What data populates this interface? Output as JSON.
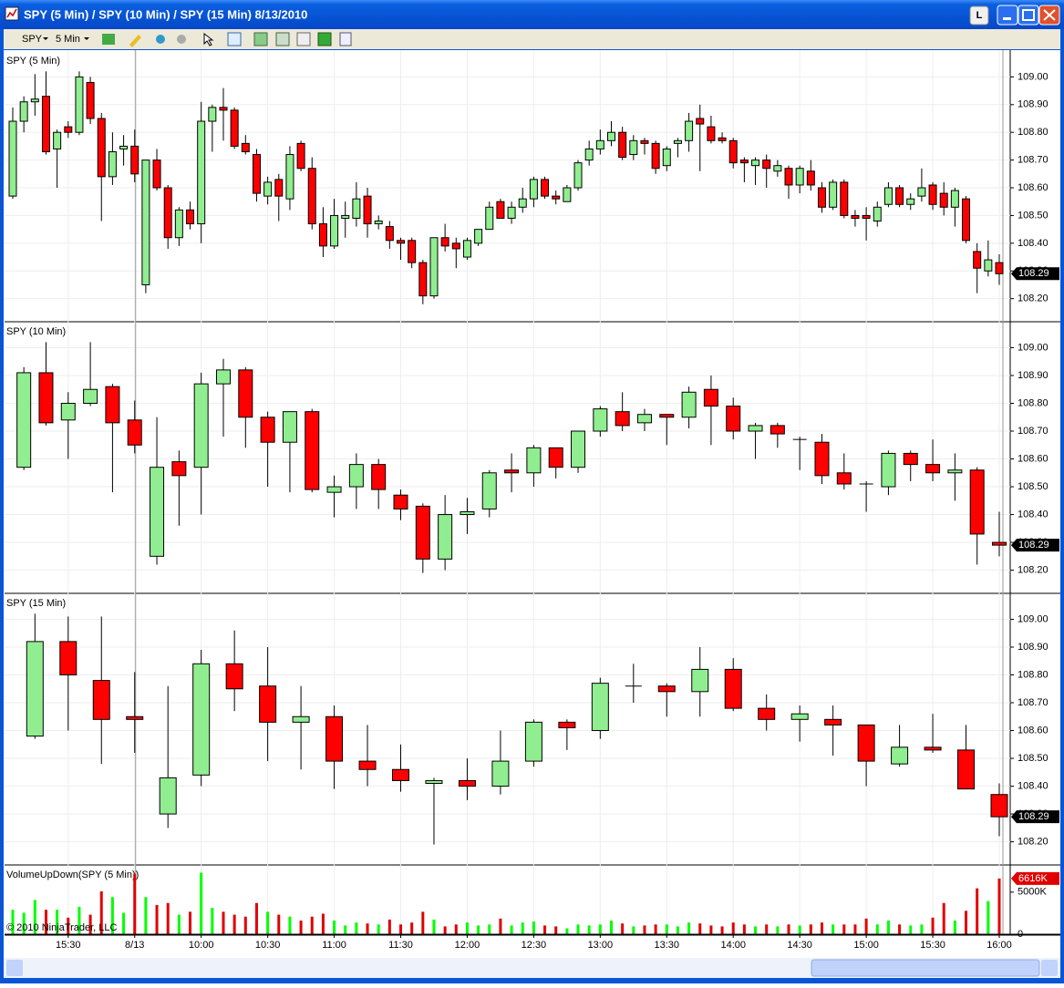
{
  "window": {
    "title": "SPY (5 Min) / SPY (10 Min) / SPY (15 Min)  8/13/2010",
    "toolbar": {
      "instrument": "SPY",
      "interval": "5 Min",
      "link_button": "L"
    }
  },
  "chart_data": [
    {
      "type": "candlestick",
      "title": "SPY (5 Min)",
      "up_color": "#90ee90",
      "down_color": "#ff0000",
      "grid": true,
      "ylim": [
        108.12,
        109.09
      ],
      "yticks": [
        {
          "value": 108.2,
          "label": "108.20"
        },
        {
          "value": 108.3,
          "label": "108.30"
        },
        {
          "value": 108.4,
          "label": "108.40"
        },
        {
          "value": 108.5,
          "label": "108.50"
        },
        {
          "value": 108.6,
          "label": "108.60"
        },
        {
          "value": 108.7,
          "label": "108.70"
        },
        {
          "value": 108.8,
          "label": "108.80"
        },
        {
          "value": 108.9,
          "label": "108.90"
        },
        {
          "value": 109,
          "label": "109.00"
        }
      ],
      "open": [
        108.57,
        108.84,
        108.91,
        108.93,
        108.74,
        108.82,
        108.8,
        108.98,
        108.85,
        108.64,
        108.74,
        108.75,
        108.25,
        108.7,
        108.6,
        108.42,
        108.52,
        108.47,
        108.84,
        108.89,
        108.88,
        108.76,
        108.72,
        108.57,
        108.63,
        108.56,
        108.76,
        108.67,
        108.47,
        108.39,
        108.49,
        108.49,
        108.57,
        108.47,
        108.46,
        108.41,
        108.41,
        108.33,
        108.21,
        108.42,
        108.4,
        108.35,
        108.4,
        108.45,
        108.55,
        108.49,
        108.53,
        108.56,
        108.63,
        108.57,
        108.55,
        108.6,
        108.7,
        108.74,
        108.77,
        108.8,
        108.72,
        108.77,
        108.76,
        108.68,
        108.76,
        108.77,
        108.85,
        108.82,
        108.78,
        108.77,
        108.7,
        108.68,
        108.7,
        108.66,
        108.67,
        108.61,
        108.66,
        108.6,
        108.53,
        108.62,
        108.5,
        108.5,
        108.48,
        108.54,
        108.6,
        108.54,
        108.57,
        108.61,
        108.58,
        108.53,
        108.56,
        108.37,
        108.3,
        108.33
      ],
      "high": [
        108.89,
        108.93,
        109.01,
        109.02,
        108.81,
        108.84,
        109.02,
        109.0,
        108.87,
        108.8,
        108.79,
        108.81,
        108.7,
        108.74,
        108.61,
        108.53,
        108.55,
        108.91,
        108.9,
        108.96,
        108.89,
        108.79,
        108.74,
        108.64,
        108.65,
        108.75,
        108.77,
        108.71,
        108.53,
        108.56,
        108.55,
        108.62,
        108.6,
        108.5,
        108.48,
        108.42,
        108.42,
        108.34,
        108.42,
        108.47,
        108.42,
        108.42,
        108.45,
        108.55,
        108.56,
        108.55,
        108.6,
        108.64,
        108.64,
        108.59,
        108.61,
        108.7,
        108.77,
        108.81,
        108.84,
        108.82,
        108.79,
        108.78,
        108.77,
        108.75,
        108.78,
        108.87,
        108.9,
        108.86,
        108.8,
        108.78,
        108.71,
        108.71,
        108.72,
        108.7,
        108.68,
        108.68,
        108.7,
        108.62,
        108.63,
        108.63,
        108.52,
        108.53,
        108.55,
        108.62,
        108.61,
        108.58,
        108.67,
        108.62,
        108.62,
        108.6,
        108.57,
        108.4,
        108.41,
        108.36
      ],
      "low": [
        108.56,
        108.8,
        108.86,
        108.72,
        108.6,
        108.78,
        108.79,
        108.83,
        108.48,
        108.61,
        108.68,
        108.62,
        108.22,
        108.59,
        108.38,
        108.39,
        108.45,
        108.4,
        108.73,
        108.77,
        108.74,
        108.72,
        108.55,
        108.54,
        108.48,
        108.52,
        108.66,
        108.45,
        108.35,
        108.38,
        108.42,
        108.46,
        108.42,
        108.45,
        108.38,
        108.34,
        108.31,
        108.18,
        108.2,
        108.37,
        108.31,
        108.34,
        108.39,
        108.45,
        108.49,
        108.47,
        108.51,
        108.53,
        108.56,
        108.54,
        108.55,
        108.59,
        108.68,
        108.72,
        108.75,
        108.7,
        108.7,
        108.72,
        108.65,
        108.66,
        108.71,
        108.73,
        108.66,
        108.76,
        108.76,
        108.67,
        108.62,
        108.61,
        108.6,
        108.64,
        108.56,
        108.58,
        108.59,
        108.51,
        108.52,
        108.49,
        108.46,
        108.41,
        108.46,
        108.53,
        108.53,
        108.52,
        108.55,
        108.52,
        108.5,
        108.46,
        108.4,
        108.22,
        108.28,
        108.25
      ],
      "close": [
        108.84,
        108.91,
        108.92,
        108.73,
        108.8,
        108.8,
        109.0,
        108.85,
        108.64,
        108.73,
        108.75,
        108.65,
        108.7,
        108.6,
        108.42,
        108.52,
        108.47,
        108.84,
        108.89,
        108.88,
        108.75,
        108.73,
        108.58,
        108.62,
        108.57,
        108.72,
        108.67,
        108.47,
        108.39,
        108.5,
        108.5,
        108.56,
        108.47,
        108.48,
        108.41,
        108.4,
        108.33,
        108.21,
        108.42,
        108.39,
        108.38,
        108.41,
        108.45,
        108.53,
        108.49,
        108.53,
        108.56,
        108.63,
        108.57,
        108.56,
        108.6,
        108.69,
        108.74,
        108.77,
        108.8,
        108.71,
        108.77,
        108.76,
        108.67,
        108.74,
        108.77,
        108.84,
        108.83,
        108.77,
        108.77,
        108.69,
        108.69,
        108.7,
        108.67,
        108.68,
        108.61,
        108.67,
        108.61,
        108.53,
        108.62,
        108.5,
        108.49,
        108.49,
        108.53,
        108.6,
        108.54,
        108.56,
        108.6,
        108.54,
        108.53,
        108.59,
        108.41,
        108.31,
        108.34,
        108.29
      ]
    },
    {
      "type": "candlestick",
      "title": "SPY (10 Min)",
      "up_color": "#90ee90",
      "down_color": "#ff0000",
      "grid": true,
      "ylim": [
        108.12,
        109.09
      ],
      "yticks": [
        {
          "value": 108.2,
          "label": "108.20"
        },
        {
          "value": 108.3,
          "label": "108.30"
        },
        {
          "value": 108.4,
          "label": "108.40"
        },
        {
          "value": 108.5,
          "label": "108.50"
        },
        {
          "value": 108.6,
          "label": "108.60"
        },
        {
          "value": 108.7,
          "label": "108.70"
        },
        {
          "value": 108.8,
          "label": "108.80"
        },
        {
          "value": 108.9,
          "label": "108.90"
        },
        {
          "value": 109,
          "label": "109.00"
        }
      ],
      "open": [
        108.57,
        108.91,
        108.74,
        108.8,
        108.86,
        108.74,
        108.25,
        108.59,
        108.57,
        108.87,
        108.92,
        108.75,
        108.66,
        108.77,
        108.48,
        108.5,
        108.58,
        108.47,
        108.43,
        108.24,
        108.4,
        108.42,
        108.56,
        108.55,
        108.64,
        108.57,
        108.7,
        108.77,
        108.73,
        108.76,
        108.75,
        108.85,
        108.79,
        108.7,
        108.72,
        108.67,
        108.66,
        108.55,
        108.51,
        108.5,
        108.62,
        108.58,
        108.55,
        108.56,
        108.3
      ],
      "high": [
        108.93,
        109.02,
        108.84,
        109.02,
        108.87,
        108.81,
        108.75,
        108.63,
        108.91,
        108.96,
        108.93,
        108.77,
        108.77,
        108.78,
        108.54,
        108.62,
        108.6,
        108.49,
        108.44,
        108.47,
        108.46,
        108.56,
        108.62,
        108.65,
        108.64,
        108.7,
        108.79,
        108.84,
        108.78,
        108.76,
        108.86,
        108.9,
        108.82,
        108.73,
        108.73,
        108.68,
        108.69,
        108.62,
        108.52,
        108.63,
        108.63,
        108.67,
        108.62,
        108.57,
        108.41
      ],
      "low": [
        108.56,
        108.72,
        108.6,
        108.79,
        108.48,
        108.62,
        108.22,
        108.36,
        108.4,
        108.68,
        108.64,
        108.5,
        108.48,
        108.48,
        108.39,
        108.42,
        108.42,
        108.38,
        108.19,
        108.2,
        108.33,
        108.39,
        108.48,
        108.5,
        108.53,
        108.55,
        108.68,
        108.7,
        108.7,
        108.65,
        108.71,
        108.65,
        108.67,
        108.6,
        108.64,
        108.56,
        108.51,
        108.49,
        108.41,
        108.47,
        108.52,
        108.52,
        108.45,
        108.22,
        108.25
      ],
      "close": [
        108.91,
        108.73,
        108.8,
        108.85,
        108.73,
        108.65,
        108.57,
        108.54,
        108.87,
        108.92,
        108.75,
        108.66,
        108.77,
        108.49,
        108.5,
        108.58,
        108.49,
        108.42,
        108.24,
        108.4,
        108.41,
        108.55,
        108.55,
        108.64,
        108.57,
        108.7,
        108.78,
        108.72,
        108.76,
        108.75,
        108.84,
        108.79,
        108.7,
        108.72,
        108.69,
        108.67,
        108.54,
        108.51,
        108.51,
        108.62,
        108.58,
        108.55,
        108.56,
        108.33,
        108.29
      ]
    },
    {
      "type": "candlestick",
      "title": "SPY (15 Min)",
      "up_color": "#90ee90",
      "down_color": "#ff0000",
      "grid": true,
      "ylim": [
        108.12,
        109.09
      ],
      "yticks": [
        {
          "value": 108.2,
          "label": "108.20"
        },
        {
          "value": 108.3,
          "label": "108.30"
        },
        {
          "value": 108.4,
          "label": "108.40"
        },
        {
          "value": 108.5,
          "label": "108.50"
        },
        {
          "value": 108.6,
          "label": "108.60"
        },
        {
          "value": 108.7,
          "label": "108.70"
        },
        {
          "value": 108.8,
          "label": "108.80"
        },
        {
          "value": 108.9,
          "label": "108.90"
        },
        {
          "value": 109,
          "label": "109.00"
        }
      ],
      "open": [
        108.58,
        108.92,
        108.78,
        108.65,
        108.3,
        108.44,
        108.84,
        108.76,
        108.63,
        108.65,
        108.49,
        108.46,
        108.41,
        108.42,
        108.4,
        108.49,
        108.63,
        108.6,
        108.76,
        108.76,
        108.74,
        108.82,
        108.68,
        108.64,
        108.64,
        108.62,
        108.48,
        108.54,
        108.53,
        108.37
      ],
      "high": [
        109.02,
        109.01,
        109.01,
        108.81,
        108.76,
        108.89,
        108.96,
        108.9,
        108.76,
        108.69,
        108.62,
        108.55,
        108.43,
        108.5,
        108.6,
        108.64,
        108.64,
        108.79,
        108.84,
        108.77,
        108.9,
        108.86,
        108.73,
        108.69,
        108.69,
        108.62,
        108.62,
        108.66,
        108.62,
        108.41
      ],
      "low": [
        108.57,
        108.6,
        108.48,
        108.52,
        108.25,
        108.4,
        108.67,
        108.49,
        108.46,
        108.39,
        108.4,
        108.38,
        108.19,
        108.35,
        108.37,
        108.47,
        108.53,
        108.57,
        108.7,
        108.65,
        108.65,
        108.67,
        108.6,
        108.56,
        108.51,
        108.4,
        108.47,
        108.52,
        108.39,
        108.22
      ],
      "close": [
        108.92,
        108.8,
        108.64,
        108.64,
        108.43,
        108.84,
        108.75,
        108.63,
        108.65,
        108.49,
        108.46,
        108.42,
        108.42,
        108.4,
        108.49,
        108.63,
        108.61,
        108.77,
        108.76,
        108.74,
        108.82,
        108.68,
        108.64,
        108.66,
        108.62,
        108.49,
        108.54,
        108.53,
        108.39,
        108.29
      ]
    },
    {
      "type": "bar",
      "title": "VolumeUpDown(SPY (5 Min))",
      "up_color": "#00ff00",
      "down_color": "#e00000",
      "ylim": [
        0,
        8120
      ],
      "yticks": [
        0,
        {
          "value": 5000,
          "label": "5000K"
        }
      ],
      "values": [
        2900,
        2550,
        4060,
        2900,
        2900,
        1970,
        3250,
        2320,
        5100,
        4410,
        2550,
        7190,
        4410,
        3480,
        3710,
        2320,
        2670,
        7310,
        3130,
        2670,
        2320,
        2090,
        3710,
        2670,
        2320,
        2090,
        1620,
        2090,
        2440,
        1620,
        1040,
        1390,
        1280,
        1160,
        1740,
        1160,
        1390,
        2670,
        1740,
        930,
        1160,
        1390,
        1040,
        1160,
        1860,
        1040,
        1390,
        1510,
        1040,
        930,
        700,
        1160,
        1040,
        1160,
        1620,
        1280,
        930,
        1040,
        1160,
        1160,
        930,
        1390,
        1280,
        1040,
        930,
        1390,
        1160,
        930,
        1160,
        930,
        1160,
        1040,
        1160,
        1390,
        1160,
        1160,
        1160,
        1860,
        1160,
        1620,
        1160,
        1040,
        1160,
        1970,
        3710,
        1620,
        2780,
        5450,
        3940,
        6616
      ],
      "value_labels": [
        null,
        null,
        null,
        null,
        null,
        null,
        null,
        null,
        null,
        null,
        null,
        null,
        null,
        null,
        null,
        null,
        null,
        null,
        null,
        null,
        null,
        null,
        null,
        null,
        null,
        null,
        null,
        null,
        null,
        null,
        null,
        null,
        null,
        null,
        null,
        null,
        null,
        null,
        null,
        null,
        null,
        null,
        null,
        null,
        null,
        null,
        null,
        null,
        null,
        null,
        null,
        null,
        null,
        null,
        null,
        null,
        null,
        null,
        null,
        null,
        null,
        null,
        null,
        null,
        null,
        null,
        null,
        null,
        null,
        null,
        null,
        null,
        null,
        null,
        null,
        null,
        null,
        null,
        null,
        null,
        null,
        null,
        null,
        null,
        null,
        null,
        null,
        null,
        null,
        "6616K"
      ],
      "x_tick_labels": [
        "15:30",
        "8/13",
        "10:00",
        "10:30",
        "11:00",
        "11:30",
        "12:00",
        "12:30",
        "13:00",
        "13:30",
        "14:00",
        "14:30",
        "15:00",
        "15:30",
        "16:00"
      ],
      "copyright": "© 2010 NinjaTrader, LLC"
    }
  ]
}
